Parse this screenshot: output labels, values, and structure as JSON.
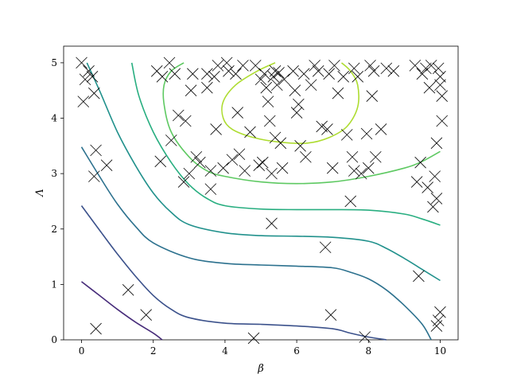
{
  "chart_data": {
    "type": "contour",
    "xlabel": "β",
    "ylabel": "Λ",
    "xlim": [
      -0.5,
      10.5
    ],
    "ylim": [
      0,
      5.3
    ],
    "xticks": [
      0,
      2,
      4,
      6,
      8,
      10
    ],
    "yticks": [
      0,
      1,
      2,
      3,
      4,
      5
    ],
    "grid": false,
    "legend": "none",
    "contours": [
      {
        "color": "#472c7a",
        "points": [
          [
            0.0,
            1.05
          ],
          [
            0.5,
            0.8
          ],
          [
            1.0,
            0.55
          ],
          [
            1.5,
            0.32
          ],
          [
            2.0,
            0.12
          ],
          [
            2.25,
            0.0
          ]
        ]
      },
      {
        "color": "#3b518b",
        "points": [
          [
            0.0,
            2.42
          ],
          [
            0.5,
            1.98
          ],
          [
            1.0,
            1.55
          ],
          [
            1.5,
            1.15
          ],
          [
            2.0,
            0.8
          ],
          [
            2.5,
            0.55
          ],
          [
            3.0,
            0.4
          ],
          [
            4.0,
            0.3
          ],
          [
            5.0,
            0.28
          ],
          [
            6.0,
            0.25
          ],
          [
            7.0,
            0.2
          ],
          [
            7.5,
            0.12
          ],
          [
            8.0,
            0.05
          ],
          [
            8.5,
            0.0
          ]
        ]
      },
      {
        "color": "#2c718e",
        "points": [
          [
            0.0,
            3.48
          ],
          [
            0.5,
            2.95
          ],
          [
            1.0,
            2.45
          ],
          [
            1.5,
            2.05
          ],
          [
            2.0,
            1.75
          ],
          [
            3.0,
            1.48
          ],
          [
            4.0,
            1.38
          ],
          [
            5.0,
            1.35
          ],
          [
            6.0,
            1.33
          ],
          [
            7.0,
            1.3
          ],
          [
            7.5,
            1.22
          ],
          [
            8.0,
            1.1
          ],
          [
            8.5,
            0.9
          ],
          [
            9.0,
            0.62
          ],
          [
            9.5,
            0.28
          ],
          [
            9.75,
            0.0
          ]
        ]
      },
      {
        "color": "#21918c",
        "points": [
          [
            0.15,
            5.0
          ],
          [
            0.5,
            4.5
          ],
          [
            1.0,
            3.75
          ],
          [
            1.5,
            3.15
          ],
          [
            2.0,
            2.65
          ],
          [
            2.5,
            2.3
          ],
          [
            3.0,
            2.08
          ],
          [
            4.0,
            1.93
          ],
          [
            5.0,
            1.88
          ],
          [
            6.0,
            1.87
          ],
          [
            7.0,
            1.85
          ],
          [
            8.0,
            1.78
          ],
          [
            8.5,
            1.65
          ],
          [
            9.0,
            1.47
          ],
          [
            9.5,
            1.27
          ],
          [
            10.0,
            1.07
          ]
        ]
      },
      {
        "color": "#28ae80",
        "points": [
          [
            1.4,
            5.0
          ],
          [
            1.6,
            4.4
          ],
          [
            2.0,
            3.75
          ],
          [
            2.5,
            3.2
          ],
          [
            3.0,
            2.8
          ],
          [
            3.5,
            2.55
          ],
          [
            4.0,
            2.42
          ],
          [
            5.0,
            2.36
          ],
          [
            6.0,
            2.35
          ],
          [
            7.0,
            2.35
          ],
          [
            8.0,
            2.34
          ],
          [
            9.0,
            2.27
          ],
          [
            9.5,
            2.18
          ],
          [
            10.0,
            2.07
          ]
        ]
      },
      {
        "color": "#5ec962",
        "points": [
          [
            2.85,
            5.0
          ],
          [
            2.5,
            4.85
          ],
          [
            2.3,
            4.6
          ],
          [
            2.3,
            4.25
          ],
          [
            2.5,
            3.75
          ],
          [
            3.0,
            3.3
          ],
          [
            3.5,
            3.05
          ],
          [
            4.0,
            2.95
          ],
          [
            5.0,
            2.85
          ],
          [
            6.0,
            2.82
          ],
          [
            7.0,
            2.85
          ],
          [
            8.0,
            2.95
          ],
          [
            9.0,
            3.1
          ],
          [
            9.5,
            3.22
          ],
          [
            10.0,
            3.4
          ]
        ]
      },
      {
        "color": "#addc30",
        "points": [
          [
            5.4,
            5.0
          ],
          [
            4.9,
            4.85
          ],
          [
            4.3,
            4.6
          ],
          [
            3.95,
            4.3
          ],
          [
            3.95,
            4.0
          ],
          [
            4.2,
            3.8
          ],
          [
            4.8,
            3.65
          ],
          [
            5.5,
            3.57
          ],
          [
            6.3,
            3.55
          ],
          [
            6.9,
            3.65
          ],
          [
            7.4,
            3.85
          ],
          [
            7.7,
            4.2
          ],
          [
            7.7,
            4.6
          ],
          [
            7.5,
            4.85
          ],
          [
            7.25,
            5.0
          ]
        ]
      }
    ],
    "markers": {
      "symbol": "x",
      "color": "#000000",
      "points": [
        [
          0.0,
          5.0
        ],
        [
          0.1,
          4.7
        ],
        [
          0.2,
          4.85
        ],
        [
          0.3,
          4.75
        ],
        [
          0.35,
          4.45
        ],
        [
          0.05,
          4.3
        ],
        [
          0.4,
          3.42
        ],
        [
          0.35,
          2.95
        ],
        [
          0.7,
          3.15
        ],
        [
          1.3,
          0.9
        ],
        [
          1.8,
          0.45
        ],
        [
          0.4,
          0.2
        ],
        [
          2.1,
          4.85
        ],
        [
          2.25,
          4.75
        ],
        [
          2.45,
          5.0
        ],
        [
          2.6,
          4.8
        ],
        [
          2.2,
          3.22
        ],
        [
          2.5,
          3.6
        ],
        [
          2.9,
          3.95
        ],
        [
          2.7,
          4.05
        ],
        [
          2.85,
          2.85
        ],
        [
          3.0,
          3.0
        ],
        [
          3.05,
          4.5
        ],
        [
          3.1,
          4.8
        ],
        [
          3.2,
          3.3
        ],
        [
          3.3,
          3.2
        ],
        [
          3.5,
          4.8
        ],
        [
          3.6,
          3.05
        ],
        [
          3.7,
          4.75
        ],
        [
          3.8,
          4.95
        ],
        [
          3.5,
          4.55
        ],
        [
          3.75,
          3.8
        ],
        [
          3.6,
          2.72
        ],
        [
          3.95,
          3.1
        ],
        [
          4.05,
          5.0
        ],
        [
          4.1,
          4.85
        ],
        [
          4.2,
          3.25
        ],
        [
          4.35,
          4.1
        ],
        [
          4.3,
          4.8
        ],
        [
          4.4,
          3.35
        ],
        [
          4.5,
          4.95
        ],
        [
          4.55,
          3.05
        ],
        [
          4.7,
          3.75
        ],
        [
          4.8,
          0.03
        ],
        [
          4.85,
          4.95
        ],
        [
          4.95,
          3.15
        ],
        [
          5.0,
          4.7
        ],
        [
          5.05,
          3.2
        ],
        [
          5.1,
          4.8
        ],
        [
          5.15,
          4.55
        ],
        [
          5.2,
          4.3
        ],
        [
          5.25,
          3.95
        ],
        [
          5.3,
          2.1
        ],
        [
          5.35,
          4.75
        ],
        [
          5.4,
          4.85
        ],
        [
          5.45,
          4.6
        ],
        [
          5.5,
          4.82
        ],
        [
          5.55,
          3.55
        ],
        [
          5.6,
          3.1
        ],
        [
          5.65,
          4.7
        ],
        [
          5.3,
          3.0
        ],
        [
          5.4,
          3.65
        ],
        [
          5.9,
          4.85
        ],
        [
          5.95,
          4.5
        ],
        [
          6.05,
          4.25
        ],
        [
          6.0,
          4.1
        ],
        [
          6.1,
          3.5
        ],
        [
          6.2,
          4.8
        ],
        [
          6.25,
          3.3
        ],
        [
          6.4,
          4.6
        ],
        [
          6.5,
          4.95
        ],
        [
          6.6,
          4.85
        ],
        [
          6.7,
          3.85
        ],
        [
          6.8,
          1.67
        ],
        [
          6.85,
          3.8
        ],
        [
          6.9,
          4.8
        ],
        [
          6.95,
          0.45
        ],
        [
          7.0,
          3.1
        ],
        [
          7.05,
          4.95
        ],
        [
          7.15,
          4.45
        ],
        [
          7.3,
          4.75
        ],
        [
          7.4,
          3.7
        ],
        [
          7.5,
          2.5
        ],
        [
          7.55,
          3.3
        ],
        [
          7.6,
          3.05
        ],
        [
          7.6,
          4.9
        ],
        [
          7.7,
          4.75
        ],
        [
          7.8,
          3.0
        ],
        [
          7.9,
          0.05
        ],
        [
          7.95,
          3.72
        ],
        [
          8.0,
          3.1
        ],
        [
          8.05,
          4.95
        ],
        [
          8.1,
          4.4
        ],
        [
          8.15,
          4.85
        ],
        [
          8.2,
          3.3
        ],
        [
          8.35,
          3.8
        ],
        [
          8.5,
          4.9
        ],
        [
          8.7,
          4.85
        ],
        [
          9.3,
          4.95
        ],
        [
          9.35,
          2.85
        ],
        [
          9.4,
          1.15
        ],
        [
          9.45,
          3.2
        ],
        [
          9.5,
          4.8
        ],
        [
          9.6,
          4.9
        ],
        [
          9.65,
          2.75
        ],
        [
          9.7,
          4.55
        ],
        [
          9.75,
          4.95
        ],
        [
          9.8,
          2.4
        ],
        [
          9.85,
          2.95
        ],
        [
          9.9,
          3.55
        ],
        [
          9.95,
          4.9
        ],
        [
          9.9,
          0.25
        ],
        [
          9.95,
          0.35
        ],
        [
          10.0,
          0.5
        ],
        [
          10.0,
          4.75
        ],
        [
          10.05,
          4.4
        ],
        [
          10.0,
          4.6
        ],
        [
          9.9,
          2.55
        ],
        [
          10.05,
          3.95
        ]
      ]
    }
  }
}
